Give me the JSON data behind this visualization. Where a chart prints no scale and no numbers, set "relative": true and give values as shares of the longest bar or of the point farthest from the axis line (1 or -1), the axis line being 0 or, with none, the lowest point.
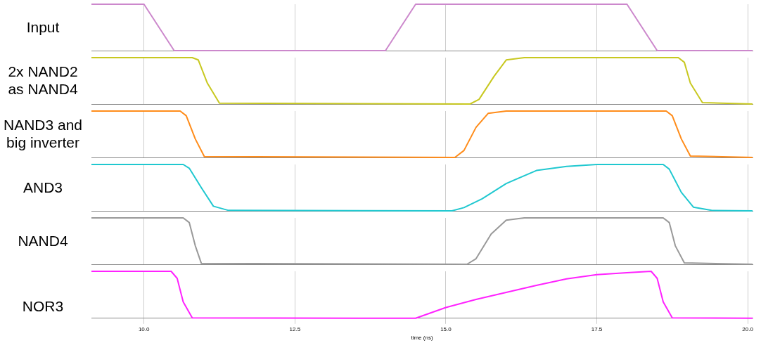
{
  "chart_data": [
    {
      "type": "line",
      "ylabel": "Input",
      "relative": true,
      "color": "#cc88cc",
      "x": [
        9.13,
        10,
        10.5,
        14,
        14.5,
        18,
        18.5,
        20.08
      ],
      "values": [
        1,
        1,
        0,
        0,
        1,
        1,
        0,
        0
      ],
      "xlim": [
        9.13,
        20.08
      ],
      "xticks": [
        10,
        12.5,
        15,
        17.5,
        20
      ],
      "tick_labels": false,
      "grid": "x"
    },
    {
      "type": "line",
      "ylabel": "2x NAND2 as NAND4",
      "relative": true,
      "color": "#c8c820",
      "x": [
        9.13,
        10.8,
        10.9,
        11.05,
        11.25,
        15.4,
        15.55,
        15.8,
        16.0,
        16.3,
        18.85,
        18.95,
        19.05,
        19.25,
        20.08
      ],
      "values": [
        1,
        1,
        0.95,
        0.45,
        0.02,
        0,
        0.1,
        0.6,
        0.95,
        1,
        1,
        0.9,
        0.45,
        0.03,
        0
      ],
      "xlim": [
        9.13,
        20.08
      ],
      "xticks": [
        10,
        12.5,
        15,
        17.5,
        20
      ],
      "tick_labels": false,
      "grid": "x"
    },
    {
      "type": "line",
      "ylabel": "NAND3 and big inverter",
      "relative": true,
      "color": "#ff8c1a",
      "x": [
        9.13,
        10.6,
        10.7,
        10.85,
        11.0,
        15.15,
        15.3,
        15.5,
        15.7,
        16.0,
        18.65,
        18.75,
        18.9,
        19.05,
        20.08
      ],
      "values": [
        1,
        1,
        0.9,
        0.4,
        0.02,
        0,
        0.15,
        0.65,
        0.95,
        1,
        1,
        0.9,
        0.4,
        0.03,
        0
      ],
      "xlim": [
        9.13,
        20.08
      ],
      "xticks": [
        10,
        12.5,
        15,
        17.5,
        20
      ],
      "tick_labels": false,
      "grid": "x"
    },
    {
      "type": "line",
      "ylabel": "AND3",
      "relative": true,
      "color": "#20c8d0",
      "x": [
        9.13,
        10.65,
        10.75,
        10.95,
        11.15,
        11.4,
        15.1,
        15.3,
        15.6,
        16.0,
        16.5,
        17.0,
        17.5,
        18.6,
        18.7,
        18.9,
        19.1,
        19.4,
        20.08
      ],
      "values": [
        1,
        1,
        0.92,
        0.5,
        0.1,
        0.01,
        0,
        0.07,
        0.26,
        0.59,
        0.87,
        0.96,
        1,
        1,
        0.9,
        0.4,
        0.08,
        0.01,
        0
      ],
      "xlim": [
        9.13,
        20.08
      ],
      "xticks": [
        10,
        12.5,
        15,
        17.5,
        20
      ],
      "tick_labels": false,
      "grid": "x"
    },
    {
      "type": "line",
      "ylabel": "NAND4",
      "relative": true,
      "color": "#999999",
      "x": [
        9.13,
        10.65,
        10.75,
        10.85,
        10.95,
        15.35,
        15.5,
        15.75,
        16.0,
        16.3,
        18.6,
        18.7,
        18.8,
        18.95,
        20.08
      ],
      "values": [
        1,
        1,
        0.9,
        0.4,
        0.02,
        0,
        0.12,
        0.65,
        0.95,
        1,
        1,
        0.9,
        0.4,
        0.03,
        0
      ],
      "xlim": [
        9.13,
        20.08
      ],
      "xticks": [
        10,
        12.5,
        15,
        17.5,
        20
      ],
      "tick_labels": false,
      "grid": "x"
    },
    {
      "type": "line",
      "ylabel": "NOR3",
      "xlabel": "time (ns)",
      "relative": true,
      "color": "#ff22ff",
      "x": [
        9.13,
        10.45,
        10.55,
        10.65,
        10.8,
        14.5,
        15.0,
        15.5,
        16.0,
        16.5,
        17.0,
        17.5,
        18.0,
        18.4,
        18.5,
        18.6,
        18.75,
        20.08
      ],
      "values": [
        1,
        1,
        0.85,
        0.35,
        0.01,
        0,
        0.23,
        0.4,
        0.55,
        0.7,
        0.84,
        0.93,
        0.97,
        1,
        0.85,
        0.35,
        0.01,
        0
      ],
      "xlim": [
        9.13,
        20.08
      ],
      "xticks": [
        {
          "value": 10,
          "label": "10.0"
        },
        {
          "value": 12.5,
          "label": "12.5"
        },
        {
          "value": 15,
          "label": "15.0"
        },
        {
          "value": 17.5,
          "label": "17.5"
        },
        {
          "value": 20,
          "label": "20.0"
        }
      ],
      "tick_labels": "x",
      "grid": "x"
    }
  ]
}
